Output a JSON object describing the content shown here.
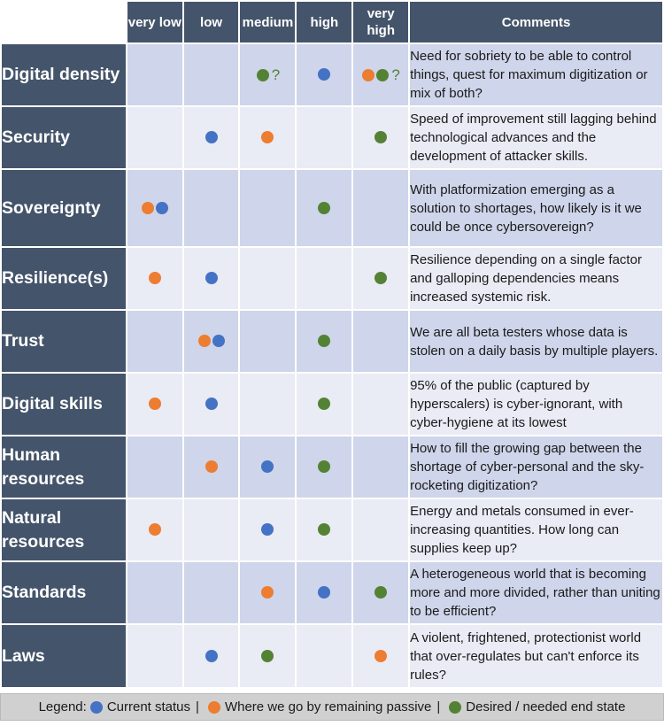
{
  "header": {
    "columns": [
      "very low",
      "low",
      "medium",
      "high",
      "very high"
    ],
    "comments_label": "Comments"
  },
  "rows": [
    {
      "label": "Digital density",
      "marks": [
        [],
        [],
        [
          "desired",
          "?"
        ],
        [
          "current"
        ],
        [
          "passive",
          "desired",
          "?"
        ]
      ],
      "comment": "Need for sobriety to be able to control things, quest for maximum digitization or mix of both?"
    },
    {
      "label": "Security",
      "marks": [
        [],
        [
          "current"
        ],
        [
          "passive"
        ],
        [],
        [
          "desired"
        ]
      ],
      "comment": "Speed of improvement still lagging behind technological advances and the development of attacker skills."
    },
    {
      "label": "Sovereignty",
      "marks": [
        [
          "passive",
          "current"
        ],
        [],
        [],
        [
          "desired"
        ],
        []
      ],
      "comment": "With platformization emerging as a solution to shortages, how likely is it we could be once cybersovereign?"
    },
    {
      "label": "Resilience(s)",
      "marks": [
        [
          "passive"
        ],
        [
          "current"
        ],
        [],
        [],
        [
          "desired"
        ]
      ],
      "comment": "Resilience depending on a single factor and galloping dependencies means increased systemic risk."
    },
    {
      "label": "Trust",
      "marks": [
        [],
        [
          "passive",
          "current"
        ],
        [],
        [
          "desired"
        ],
        []
      ],
      "comment": "We are all beta testers whose data is stolen on a daily basis by multiple players."
    },
    {
      "label": "Digital skills",
      "marks": [
        [
          "passive"
        ],
        [
          "current"
        ],
        [],
        [
          "desired"
        ],
        []
      ],
      "comment": "95% of the public (captured by hyperscalers) is cyber-ignorant, with cyber-hygiene at its lowest"
    },
    {
      "label": "Human resources",
      "marks": [
        [],
        [
          "passive"
        ],
        [
          "current"
        ],
        [
          "desired"
        ],
        []
      ],
      "comment": "How to fill the growing gap between the shortage of cyber-personal and the sky-rocketing digitization?"
    },
    {
      "label": "Natural resources",
      "marks": [
        [
          "passive"
        ],
        [],
        [
          "current"
        ],
        [
          "desired"
        ],
        []
      ],
      "comment": "Energy and metals consumed in ever-increasing quantities. How long can supplies keep up?"
    },
    {
      "label": "Standards",
      "marks": [
        [],
        [],
        [
          "passive"
        ],
        [
          "current"
        ],
        [
          "desired"
        ]
      ],
      "comment": "A heterogeneous world that is becoming more and more divided, rather than uniting to be efficient?"
    },
    {
      "label": "Laws",
      "marks": [
        [],
        [
          "current"
        ],
        [
          "desired"
        ],
        [],
        [
          "passive"
        ]
      ],
      "comment": "A violent, frightened, protectionist world that over-regulates but can't enforce its rules?"
    }
  ],
  "legend": {
    "prefix": "Legend:",
    "current": "Current status",
    "passive": "Where we go by remaining passive",
    "desired": "Desired / needed end state",
    "separator": "|"
  },
  "colors": {
    "current": "#4472c4",
    "passive": "#ed7d31",
    "desired": "#548235",
    "header_bg": "#44546a"
  }
}
